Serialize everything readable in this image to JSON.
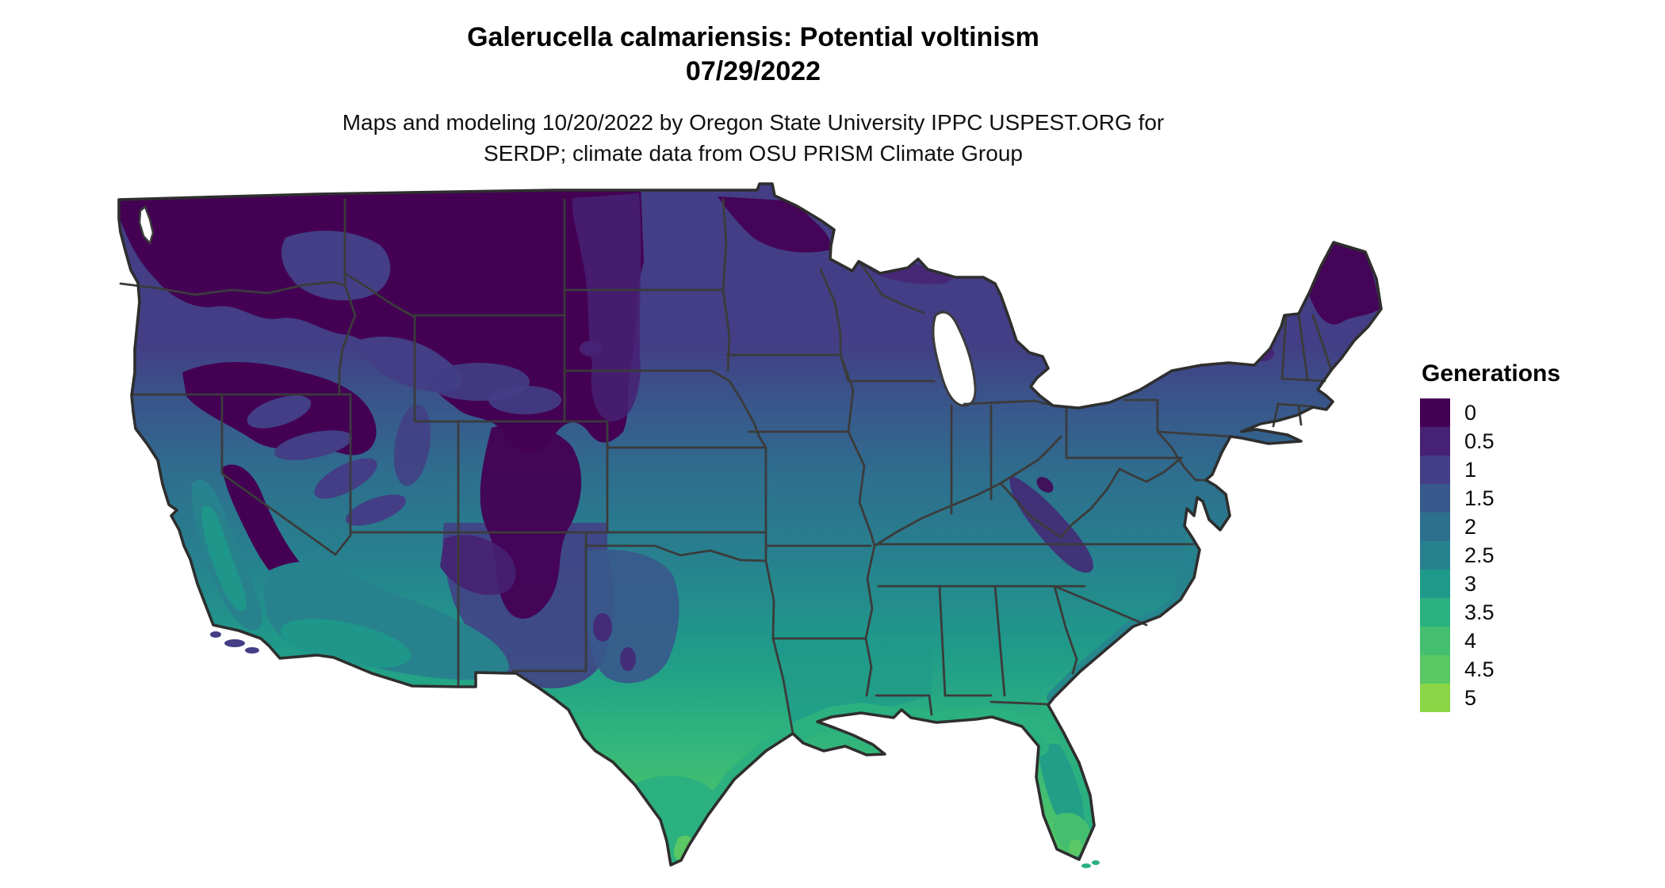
{
  "header": {
    "title": "Galerucella calmariensis: Potential voltinism",
    "date": "07/29/2022",
    "subtitle_line1": "Maps and modeling 10/20/2022 by Oregon State University IPPC USPEST.ORG for",
    "subtitle_line2": "SERDP; climate data from OSU PRISM Climate Group"
  },
  "legend": {
    "title": "Generations",
    "items": [
      {
        "label": "0",
        "color": "#440154"
      },
      {
        "label": "0.5",
        "color": "#472173"
      },
      {
        "label": "1",
        "color": "#433E85"
      },
      {
        "label": "1.5",
        "color": "#38598C"
      },
      {
        "label": "2",
        "color": "#2D708E"
      },
      {
        "label": "2.5",
        "color": "#27828E"
      },
      {
        "label": "3",
        "color": "#1F9A8A"
      },
      {
        "label": "3.5",
        "color": "#2BB07F"
      },
      {
        "label": "4",
        "color": "#44BF70"
      },
      {
        "label": "4.5",
        "color": "#5AC864"
      },
      {
        "label": "5",
        "color": "#8AD647"
      }
    ]
  },
  "map_data": {
    "type": "raster-choropleth",
    "region": "Continental United States with state boundaries",
    "variable": "Potential voltinism (generations)",
    "scale_breaks": [
      0,
      0.5,
      1,
      1.5,
      2,
      2.5,
      3,
      3.5,
      4,
      4.5,
      5
    ],
    "palette": "viridis (discrete)",
    "border_color": "#3B3B3B",
    "coast_color": "#2E2E2E",
    "background_color": "#FFFFFF",
    "regional_values_read_from_map": [
      {
        "region": "Pacific Northwest / Northern Rockies (WA, OR, ID, MT, WY)",
        "generations": "0 - 0.5"
      },
      {
        "region": "Colorado / Utah high country",
        "generations": "0 - 0.5"
      },
      {
        "region": "Northern Plains and Upper Midwest (ND, SD, MN, WI, MI)",
        "generations": "0.5 - 1"
      },
      {
        "region": "Northeast (NY, New England; northern Maine darkest)",
        "generations": "0 - 1"
      },
      {
        "region": "Central Plains and Midwest (NE, IA, IL, IN, OH, MO, KS)",
        "generations": "1 - 1.5"
      },
      {
        "region": "Mid-South (OK, AR, TN, KY, VA)",
        "generations": "1.5 - 2.5"
      },
      {
        "region": "California Central Valley",
        "generations": "2 - 3"
      },
      {
        "region": "Desert Southwest (S. AZ, S. CA)",
        "generations": "2 - 3"
      },
      {
        "region": "Deep South (TX, LA, MS, AL, GA, SC)",
        "generations": "2.5 - 3.5"
      },
      {
        "region": "Gulf Coast strip and south Texas",
        "generations": "3.5 - 4.5"
      },
      {
        "region": "Florida peninsula (southern tip highest)",
        "generations": "3 - 4.5"
      }
    ]
  }
}
